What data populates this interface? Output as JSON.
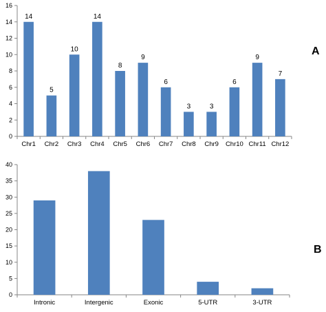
{
  "colors": {
    "bar": "#4f81bd",
    "axis": "#868686",
    "text": "#000000"
  },
  "chart_data": [
    {
      "type": "bar",
      "panel_label": "A",
      "title": "",
      "xlabel": "",
      "ylabel": "",
      "categories": [
        "Chr1",
        "Chr2",
        "Chr3",
        "Chr4",
        "Chr5",
        "Chr6",
        "Chr7",
        "Chr8",
        "Chr9",
        "Chr10",
        "Chr11",
        "Chr12"
      ],
      "values": [
        14,
        5,
        10,
        14,
        8,
        9,
        6,
        3,
        3,
        6,
        9,
        7
      ],
      "data_labels": [
        "14",
        "5",
        "10",
        "14",
        "8",
        "9",
        "6",
        "3",
        "3",
        "6",
        "9",
        "7"
      ],
      "ylim": [
        0,
        16
      ],
      "yticks": [
        0,
        2,
        4,
        6,
        8,
        10,
        12,
        14,
        16
      ],
      "ytick_labels": [
        "0",
        "2",
        "4",
        "6",
        "8",
        "10",
        "12",
        "14",
        "16"
      ],
      "grid": false,
      "legend": "none"
    },
    {
      "type": "bar",
      "panel_label": "B",
      "title": "",
      "xlabel": "",
      "ylabel": "",
      "categories": [
        "Intronic",
        "Intergenic",
        "Exonic",
        "5-UTR",
        "3-UTR"
      ],
      "values": [
        29,
        38,
        23,
        4,
        2
      ],
      "ylim": [
        0,
        40
      ],
      "yticks": [
        0,
        5,
        10,
        15,
        20,
        25,
        30,
        35,
        40
      ],
      "ytick_labels": [
        "0",
        "5",
        "10",
        "15",
        "20",
        "25",
        "30",
        "35",
        "40"
      ],
      "grid": false,
      "legend": "none"
    }
  ]
}
